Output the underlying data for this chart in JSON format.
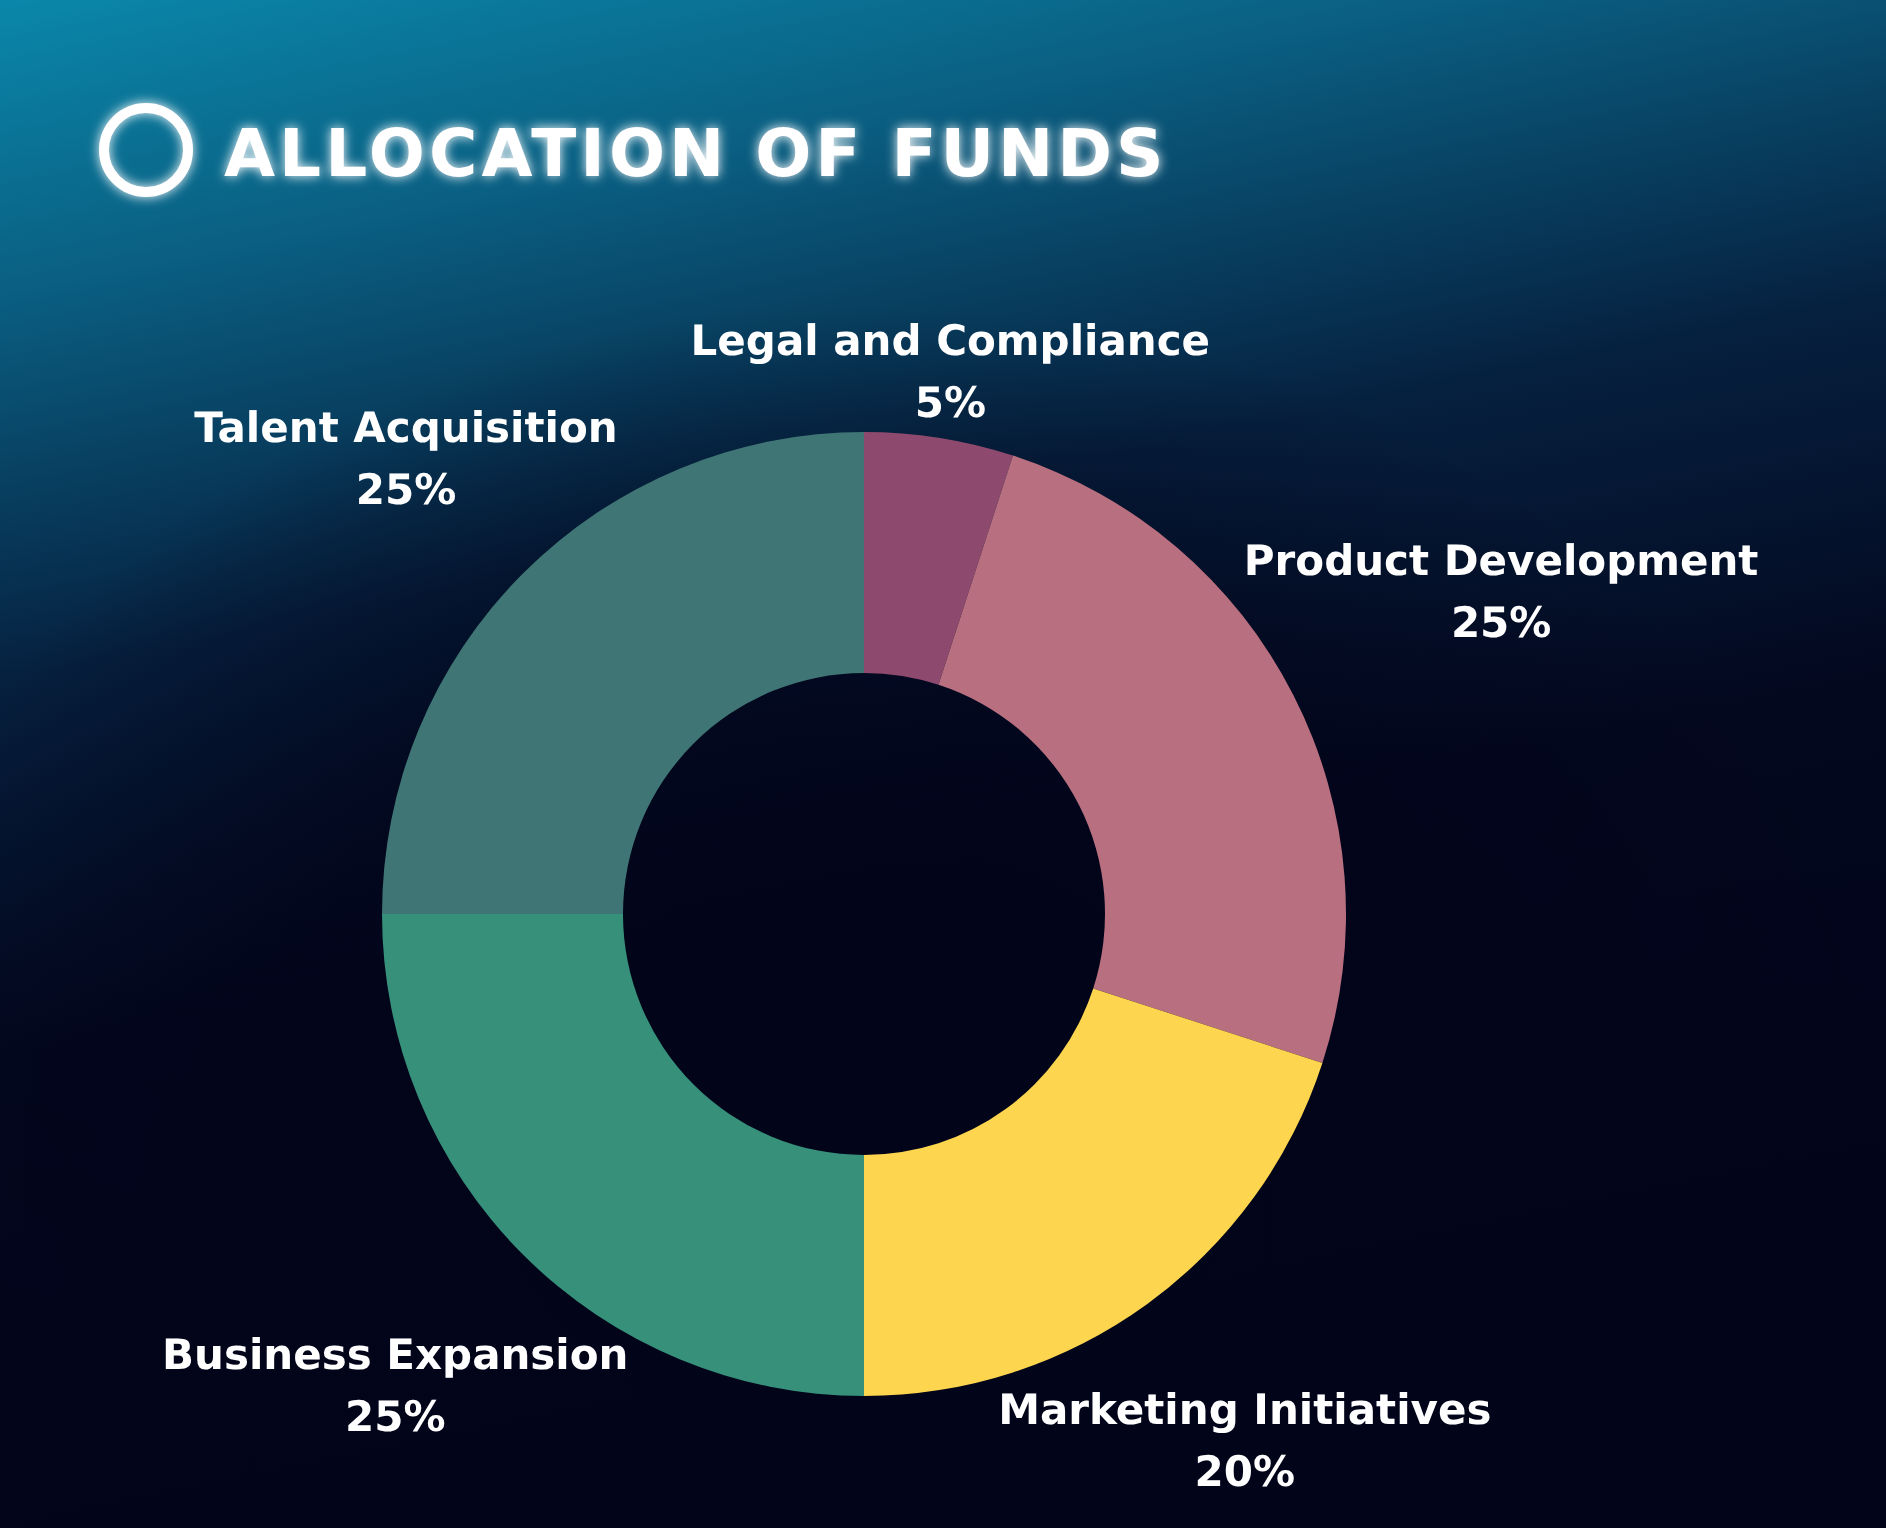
{
  "chart_data": {
    "type": "donut",
    "title": "ALLOCATION OF FUNDS",
    "categories": [
      "Legal and Compliance",
      "Product Development",
      "Marketing Initiatives",
      "Business Expansion",
      "Talent Acquisition"
    ],
    "values": [
      5,
      25,
      20,
      25,
      25
    ],
    "colors": [
      "#8d4a6e",
      "#b86f7f",
      "#fdd54f",
      "#36907a",
      "#3f7574"
    ],
    "value_labels": [
      "5%",
      "25%",
      "20%",
      "25%",
      "25%"
    ]
  }
}
